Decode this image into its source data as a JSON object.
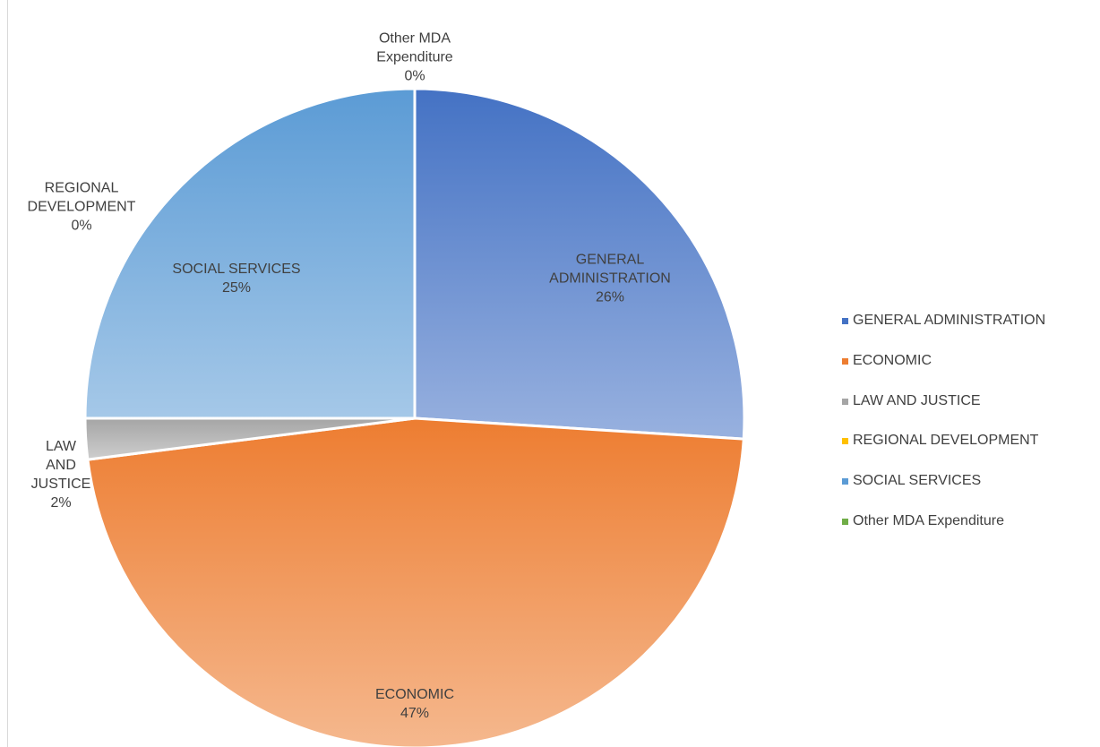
{
  "chart_data": {
    "type": "pie",
    "categories": [
      "GENERAL ADMINISTRATION",
      "ECONOMIC",
      "LAW AND JUSTICE",
      "REGIONAL DEVELOPMENT",
      "SOCIAL SERVICES",
      "Other MDA Expenditure"
    ],
    "values": [
      26,
      47,
      2,
      0,
      25,
      0
    ],
    "value_labels": [
      "26%",
      "47%",
      "2%",
      "0%",
      "25%",
      "0%"
    ],
    "colors": [
      "#4472c4",
      "#ed7d31",
      "#a5a5a5",
      "#ffc000",
      "#5b9bd5",
      "#70ad47"
    ],
    "legend": "right"
  }
}
